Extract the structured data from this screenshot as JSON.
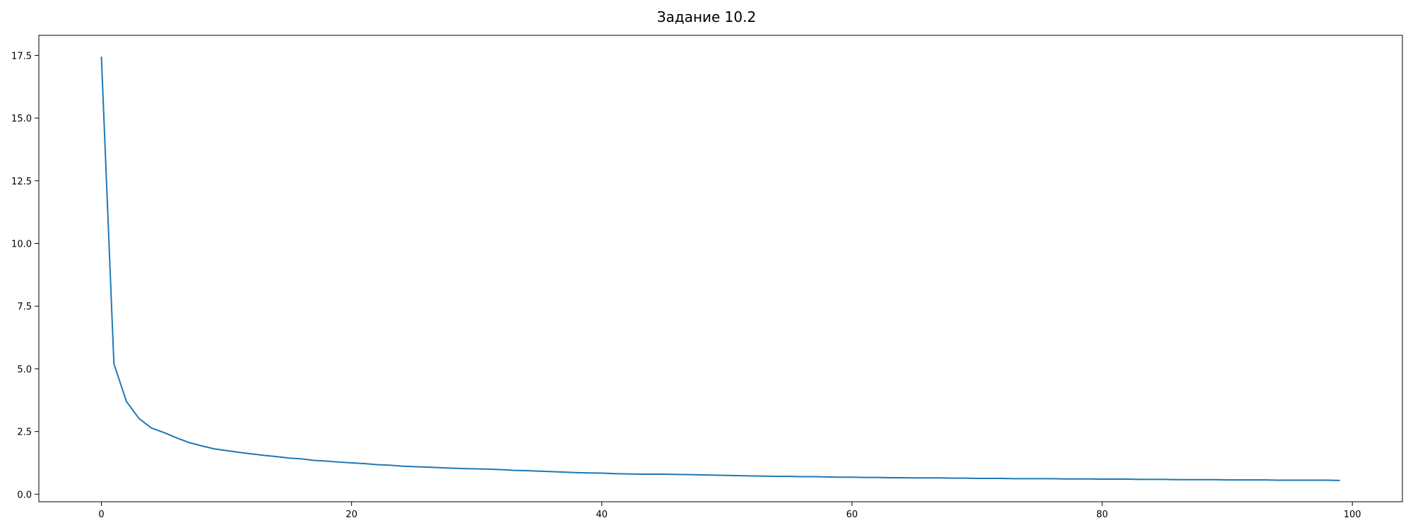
{
  "chart_data": {
    "type": "line",
    "title": "Задание 10.2",
    "xlabel": "",
    "ylabel": "",
    "xlim": [
      -5,
      104
    ],
    "ylim": [
      -0.3,
      18.3
    ],
    "grid": false,
    "legend": null,
    "x_ticks": [
      0,
      20,
      40,
      60,
      80,
      100
    ],
    "x_tick_labels": [
      "0",
      "20",
      "40",
      "60",
      "80",
      "100"
    ],
    "y_ticks": [
      0,
      2.5,
      5,
      7.5,
      10,
      12.5,
      15,
      17.5
    ],
    "y_tick_labels": [
      "0.0",
      "2.5",
      "5.0",
      "7.5",
      "10.0",
      "12.5",
      "15.0",
      "17.5"
    ],
    "series": [
      {
        "name": "series-1",
        "color": "#1f77b4",
        "x": [
          0,
          1,
          2,
          3,
          4,
          5,
          6,
          7,
          8,
          9,
          10,
          11,
          12,
          13,
          14,
          15,
          16,
          17,
          18,
          19,
          20,
          21,
          22,
          23,
          24,
          25,
          26,
          27,
          28,
          29,
          30,
          31,
          32,
          33,
          34,
          35,
          36,
          37,
          38,
          39,
          40,
          41,
          42,
          43,
          44,
          45,
          46,
          47,
          48,
          49,
          50,
          51,
          52,
          53,
          54,
          55,
          56,
          57,
          58,
          59,
          60,
          61,
          62,
          63,
          64,
          65,
          66,
          67,
          68,
          69,
          70,
          71,
          72,
          73,
          74,
          75,
          76,
          77,
          78,
          79,
          80,
          81,
          82,
          83,
          84,
          85,
          86,
          87,
          88,
          89,
          90,
          91,
          92,
          93,
          94,
          95,
          96,
          97,
          98,
          99
        ],
        "values": [
          17.45,
          5.2,
          3.7,
          3.02,
          2.64,
          2.46,
          2.25,
          2.06,
          1.93,
          1.81,
          1.74,
          1.67,
          1.61,
          1.55,
          1.5,
          1.44,
          1.41,
          1.35,
          1.32,
          1.28,
          1.25,
          1.22,
          1.18,
          1.16,
          1.12,
          1.1,
          1.08,
          1.06,
          1.04,
          1.02,
          1.01,
          1.0,
          0.98,
          0.95,
          0.94,
          0.92,
          0.9,
          0.88,
          0.86,
          0.85,
          0.84,
          0.82,
          0.81,
          0.8,
          0.8,
          0.8,
          0.79,
          0.78,
          0.77,
          0.76,
          0.75,
          0.74,
          0.73,
          0.72,
          0.71,
          0.71,
          0.7,
          0.7,
          0.69,
          0.68,
          0.68,
          0.67,
          0.67,
          0.66,
          0.66,
          0.65,
          0.65,
          0.65,
          0.64,
          0.64,
          0.63,
          0.63,
          0.63,
          0.62,
          0.62,
          0.62,
          0.62,
          0.61,
          0.61,
          0.61,
          0.6,
          0.6,
          0.6,
          0.59,
          0.59,
          0.59,
          0.58,
          0.58,
          0.58,
          0.58,
          0.57,
          0.57,
          0.57,
          0.57,
          0.56,
          0.56,
          0.56,
          0.56,
          0.56,
          0.55
        ]
      }
    ]
  }
}
